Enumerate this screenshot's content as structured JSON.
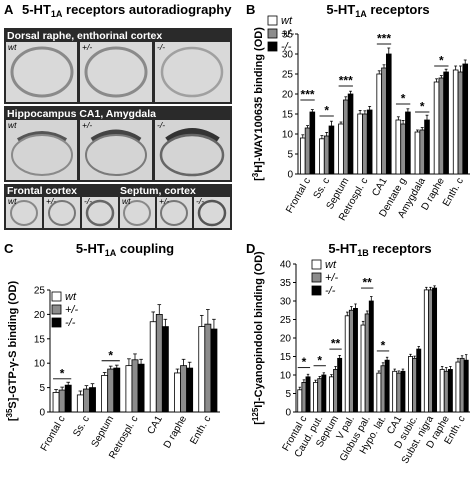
{
  "colors": {
    "wt": "#ffffff",
    "het": "#8c8c8c",
    "ko": "#000000",
    "star": "#000000"
  },
  "legend": [
    "wt",
    "+/-",
    "-/-"
  ],
  "panelA": {
    "letter": "A",
    "title": "5-HT1A receptors autoradiography",
    "title_main": "5-HT",
    "title_sub": "1A",
    "title_rest": " receptors autoradiography",
    "rows": [
      {
        "label": "Dorsal raphe, enthorinal cortex",
        "genotypes": [
          "wt",
          "+/-",
          "-/-"
        ]
      },
      {
        "label": "Hippocampus CA1, Amygdala",
        "genotypes": [
          "wt",
          "+/-",
          "-/-"
        ]
      }
    ],
    "bottom_left_label": "Frontal cortex",
    "bottom_right_label": "Septum, cortex",
    "bottom_genotypes": [
      "wt",
      "+/-",
      "-/-"
    ]
  },
  "chart_data": [
    {
      "panel": "B",
      "type": "bar",
      "title": "5-HT1A receptors",
      "title_main": "5-HT",
      "title_sub": "1A",
      "title_rest": " receptors",
      "ylabel": "[3H]-WAY100635 binding (OD)",
      "ylabel_parts": [
        "[",
        "3",
        "H]-WAY100635 binding (OD)"
      ],
      "ylim": [
        0,
        35
      ],
      "yticks": [
        0,
        5,
        10,
        15,
        20,
        25,
        30,
        35
      ],
      "categories": [
        "Frontal c",
        "Ss. c",
        "Septum",
        "Retrospl. c",
        "CA1",
        "Dentate g",
        "Amygdala",
        "D raphe",
        "Enth. c"
      ],
      "series": [
        {
          "name": "wt",
          "values": [
            9.0,
            8.8,
            12.5,
            15.0,
            25.0,
            13.5,
            10.5,
            23.0,
            26.0
          ],
          "errors": [
            0.8,
            0.8,
            0.5,
            0.9,
            0.8,
            0.8,
            0.5,
            0.8,
            1.0
          ]
        },
        {
          "name": "+/-",
          "values": [
            11.5,
            9.5,
            18.5,
            15.0,
            26.5,
            12.5,
            11.0,
            24.0,
            25.5
          ],
          "errors": [
            0.6,
            0.9,
            0.8,
            0.8,
            0.8,
            0.9,
            0.6,
            0.6,
            1.5
          ]
        },
        {
          "name": "-/-",
          "values": [
            15.5,
            12.0,
            20.0,
            16.0,
            30.0,
            15.5,
            13.5,
            25.5,
            27.5
          ],
          "errors": [
            0.6,
            1.2,
            0.7,
            0.9,
            1.5,
            0.8,
            1.2,
            0.7,
            1.0
          ]
        }
      ],
      "significance": [
        {
          "from": 0,
          "to": 0,
          "y": 18.5,
          "label": "***"
        },
        {
          "from": 1,
          "to": 1,
          "y": 14.5,
          "label": "*"
        },
        {
          "from": 2,
          "to": 2,
          "y": 22.0,
          "label": "***"
        },
        {
          "from": 4,
          "to": 4,
          "y": 32.5,
          "label": "***"
        },
        {
          "from": 5,
          "to": 5,
          "y": 17.5,
          "label": "*"
        },
        {
          "from": 6,
          "to": 6,
          "y": 15.5,
          "label": "*"
        },
        {
          "from": 7,
          "to": 7,
          "y": 27.0,
          "label": "*"
        }
      ]
    },
    {
      "panel": "C",
      "type": "bar",
      "title": "5-HT1A coupling",
      "title_main": "5-HT",
      "title_sub": "1A",
      "title_rest": " coupling",
      "ylabel": "[35S]-GTP-γ-S binding (OD)",
      "ylabel_parts": [
        "[",
        "35",
        "S]-GTP-γ-S binding (OD)"
      ],
      "ylim": [
        0,
        25
      ],
      "yticks": [
        0,
        5,
        10,
        15,
        20,
        25
      ],
      "categories": [
        "Frontal c",
        "Ss. c",
        "Septum",
        "Retrospl. c",
        "CA1",
        "D raphe",
        "Enth. c"
      ],
      "series": [
        {
          "name": "wt",
          "values": [
            4.0,
            3.5,
            7.5,
            9.5,
            18.5,
            8.0,
            17.5
          ],
          "errors": [
            0.6,
            0.8,
            0.6,
            1.4,
            2.0,
            0.8,
            2.3
          ]
        },
        {
          "name": "+/-",
          "values": [
            4.5,
            4.7,
            8.8,
            10.7,
            20.0,
            9.5,
            18.0
          ],
          "errors": [
            0.6,
            0.7,
            0.6,
            1.2,
            2.0,
            1.3,
            3.0
          ]
        },
        {
          "name": "-/-",
          "values": [
            5.5,
            5.0,
            9.0,
            9.8,
            17.5,
            9.0,
            17.0
          ],
          "errors": [
            0.6,
            0.8,
            0.6,
            1.0,
            1.5,
            1.2,
            2.0
          ]
        }
      ],
      "significance": [
        {
          "from": 0,
          "to": 0,
          "y": 6.8,
          "label": "*"
        },
        {
          "from": 2,
          "to": 2,
          "y": 10.5,
          "label": "*"
        }
      ]
    },
    {
      "panel": "D",
      "type": "bar",
      "title": "5-HT1B receptors",
      "title_main": "5-HT",
      "title_sub": "1B",
      "title_rest": " receptors",
      "ylabel": "[125I]-Cyanopindolol binding (OD)",
      "ylabel_parts": [
        "[",
        "125",
        "I]-Cyanopindolol binding (OD)"
      ],
      "ylim": [
        0,
        40
      ],
      "yticks": [
        0,
        5,
        10,
        15,
        20,
        25,
        30,
        35,
        40
      ],
      "categories": [
        "Frontal c",
        "Caud. put.",
        "Septum",
        "V pal.",
        "Globus pal.",
        "Hypo. lat.",
        "CA1",
        "D subic.",
        "Subst. nigra",
        "D raphe",
        "Enth. c"
      ],
      "series": [
        {
          "name": "wt",
          "values": [
            6.0,
            8.0,
            9.5,
            26.0,
            23.5,
            10.5,
            11.0,
            15.0,
            33.0,
            11.5,
            13.5
          ],
          "errors": [
            0.7,
            0.6,
            0.6,
            1.0,
            1.0,
            0.6,
            0.6,
            0.6,
            0.7,
            0.8,
            1.0
          ]
        },
        {
          "name": "+/-",
          "values": [
            8.0,
            9.0,
            11.5,
            27.5,
            26.5,
            12.5,
            10.5,
            14.5,
            33.0,
            11.0,
            14.5
          ],
          "errors": [
            0.7,
            0.6,
            0.8,
            1.0,
            0.8,
            0.8,
            0.6,
            0.6,
            0.7,
            1.0,
            0.7
          ]
        },
        {
          "name": "-/-",
          "values": [
            9.5,
            10.0,
            14.5,
            28.0,
            30.0,
            14.0,
            11.0,
            17.0,
            33.5,
            11.5,
            14.0
          ],
          "errors": [
            0.7,
            0.6,
            0.8,
            1.2,
            1.2,
            0.8,
            0.6,
            0.7,
            0.6,
            0.8,
            1.5
          ]
        }
      ],
      "significance": [
        {
          "from": 0,
          "to": 0,
          "y": 12.0,
          "label": "*"
        },
        {
          "from": 1,
          "to": 1,
          "y": 12.5,
          "label": "*"
        },
        {
          "from": 2,
          "to": 2,
          "y": 17.0,
          "label": "**"
        },
        {
          "from": 4,
          "to": 4,
          "y": 33.5,
          "label": "**"
        },
        {
          "from": 5,
          "to": 5,
          "y": 16.5,
          "label": "*"
        }
      ]
    }
  ]
}
